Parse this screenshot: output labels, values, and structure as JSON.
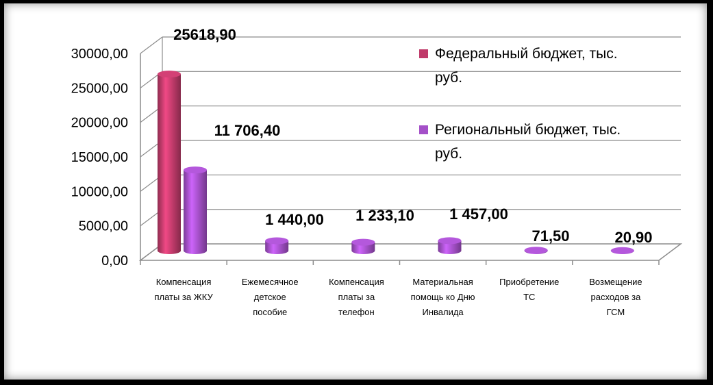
{
  "chart_data": {
    "type": "bar",
    "categories": [
      [
        "Компенсация",
        "платы за ЖКУ"
      ],
      [
        "Ежемесячное",
        "детское",
        "пособие"
      ],
      [
        "Компенсация",
        "платы за",
        "телефон"
      ],
      [
        "Материальная",
        "помощь ко Дню",
        "Инвалида"
      ],
      [
        "Приобретение",
        "ТС"
      ],
      [
        "Возмещение",
        "расходов за",
        "ГСМ"
      ]
    ],
    "series": [
      {
        "name": [
          "Федеральный бюджет, тыс.",
          "руб."
        ],
        "color": "#C03A6A",
        "values": [
          25618.9,
          null,
          null,
          null,
          null,
          null
        ],
        "labels": [
          "25618,90",
          "",
          "",
          "",
          "",
          ""
        ]
      },
      {
        "name": [
          "Региональный бюджет, тыс.",
          "руб."
        ],
        "color": "#A450C8",
        "values": [
          11706.4,
          1440.0,
          1233.1,
          1457.0,
          71.5,
          20.9
        ],
        "labels": [
          "11 706,40",
          "1 440,00",
          "1 233,10",
          "1 457,00",
          "71,50",
          "20,90"
        ]
      }
    ],
    "ylim": [
      0,
      30000
    ],
    "yticks": [
      "0,00",
      "5000,00",
      "10000,00",
      "15000,00",
      "20000,00",
      "25000,00",
      "30000,00"
    ],
    "grid": true,
    "legend_position": "right"
  }
}
